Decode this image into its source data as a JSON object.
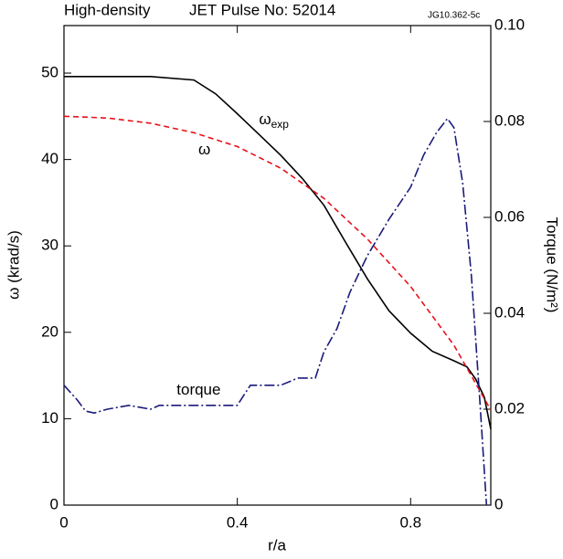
{
  "chart_data": {
    "type": "line",
    "title": "High-density",
    "subtitle": "JET Pulse No: 52014",
    "figure_id": "JG10.362-5c",
    "x_label": "r/a",
    "y_label": "ω (krad/s)",
    "y2_label": "Torque (N/m²)",
    "xlim": [
      0,
      0.985
    ],
    "xticks": [
      0,
      0.4,
      0.8
    ],
    "ylim": [
      0,
      55.5
    ],
    "yticks": [
      0,
      10,
      20,
      30,
      40,
      50
    ],
    "y2lim": [
      0,
      0.1
    ],
    "y2ticks": [
      0,
      0.02,
      0.04,
      0.06,
      0.08,
      {
        "value": 0.1,
        "label": "0.10"
      }
    ],
    "annotations": [
      {
        "text": "ω",
        "subscript": "exp",
        "x": 0.45,
        "y": 44.5
      },
      {
        "text": "ω",
        "x": 0.31,
        "y": 41
      },
      {
        "text": "torque",
        "x": 0.26,
        "y": 13.2
      }
    ],
    "series": [
      {
        "name": "ω_exp",
        "color": "#000000",
        "dash": "solid",
        "x": [
          0,
          0.1,
          0.2,
          0.3,
          0.35,
          0.4,
          0.45,
          0.5,
          0.55,
          0.6,
          0.65,
          0.7,
          0.75,
          0.8,
          0.85,
          0.9,
          0.93,
          0.95,
          0.97,
          0.985
        ],
        "values": [
          49.6,
          49.6,
          49.6,
          49.2,
          47.6,
          45.3,
          42.9,
          40.5,
          37.8,
          34.7,
          30.4,
          26.2,
          22.5,
          19.9,
          17.8,
          16.7,
          16,
          14.6,
          12.5,
          8.8
        ]
      },
      {
        "name": "ω",
        "color": "#e8101a",
        "dash": "dashed",
        "x": [
          0,
          0.1,
          0.2,
          0.3,
          0.4,
          0.5,
          0.6,
          0.7,
          0.8,
          0.9,
          0.985
        ],
        "values": [
          45,
          44.8,
          44.2,
          43.1,
          41.5,
          39,
          35.5,
          30.8,
          25.3,
          18.5,
          11
        ]
      },
      {
        "name": "torque",
        "color": "#1a1a7a",
        "dash": "dashdot",
        "axis": "y2",
        "x": [
          0,
          0.03,
          0.05,
          0.07,
          0.1,
          0.15,
          0.2,
          0.22,
          0.3,
          0.4,
          0.43,
          0.5,
          0.54,
          0.58,
          0.6,
          0.63,
          0.66,
          0.7,
          0.75,
          0.8,
          0.83,
          0.86,
          0.885,
          0.9,
          0.92,
          0.94,
          0.96,
          0.975
        ],
        "values": [
          0.025,
          0.022,
          0.0196,
          0.0192,
          0.02,
          0.0208,
          0.02,
          0.0208,
          0.0208,
          0.0208,
          0.025,
          0.025,
          0.0265,
          0.0265,
          0.032,
          0.0368,
          0.0444,
          0.052,
          0.0596,
          0.0663,
          0.073,
          0.0777,
          0.0806,
          0.0787,
          0.0672,
          0.048,
          0.0215,
          0
        ]
      }
    ]
  }
}
